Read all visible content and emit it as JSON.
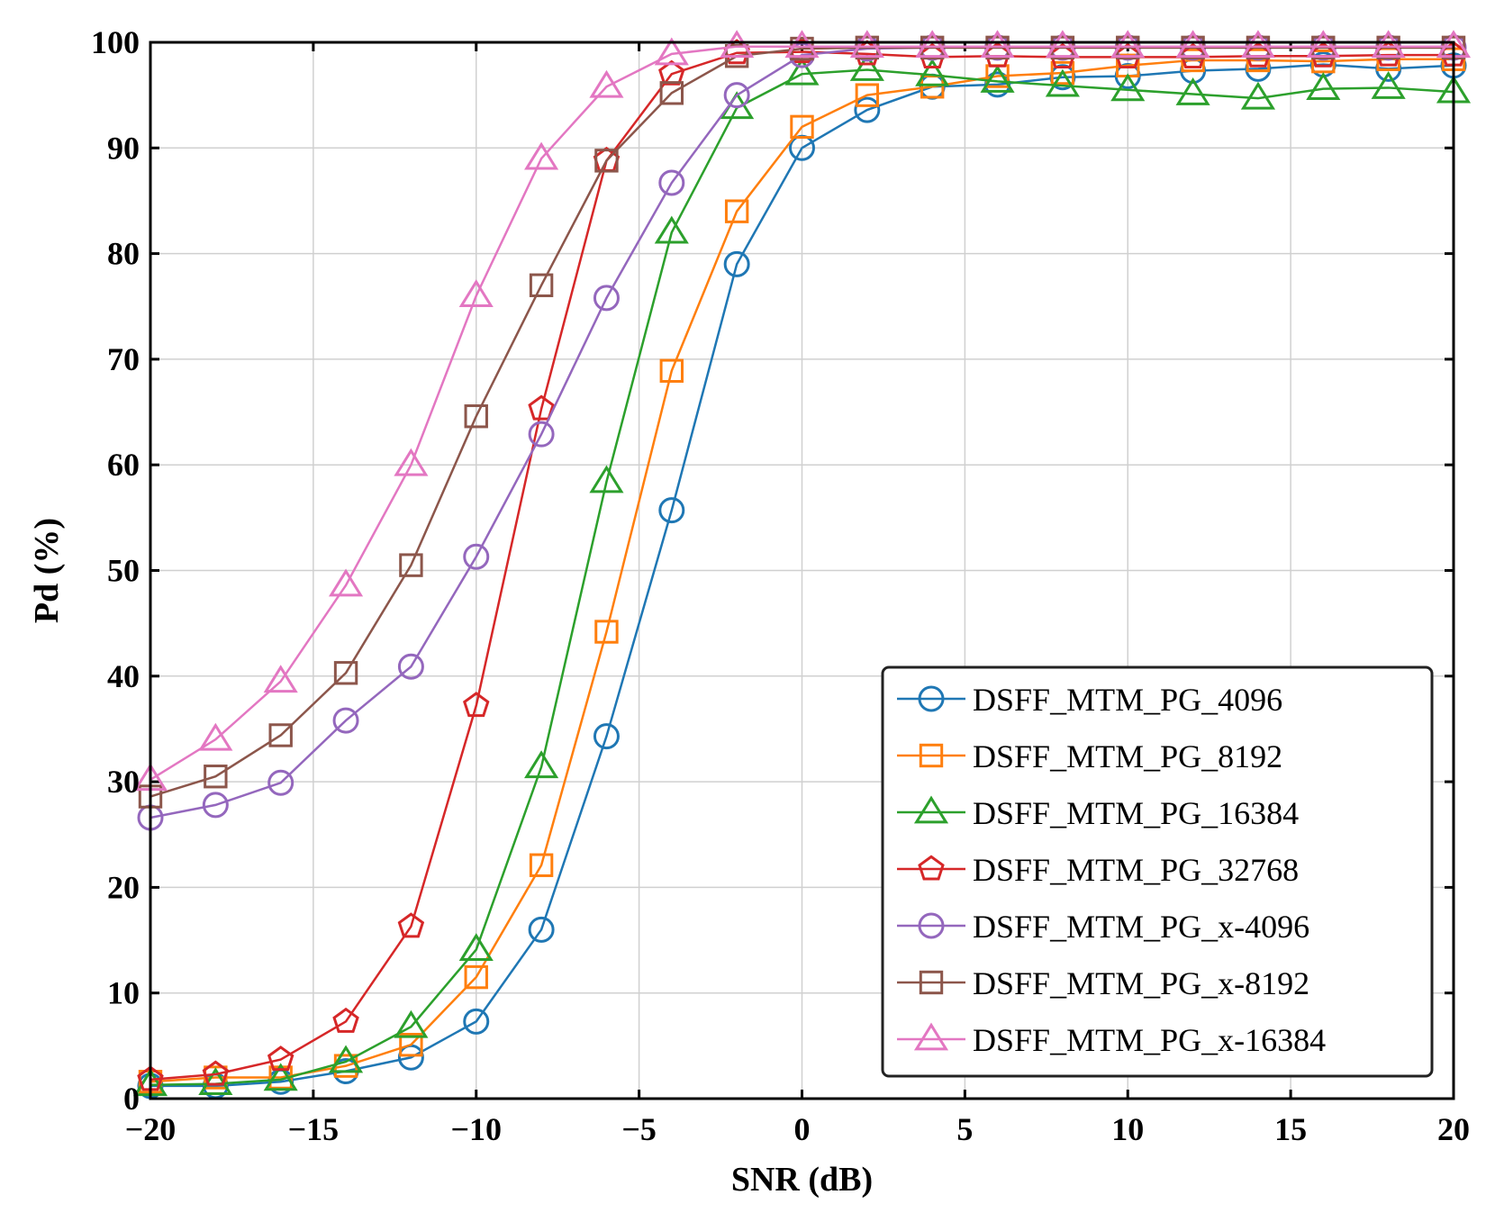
{
  "chart_data": {
    "type": "line",
    "title": "",
    "xlabel": "SNR (dB)",
    "ylabel": "Pd (%)",
    "xlim": [
      -20,
      20
    ],
    "ylim": [
      0,
      100
    ],
    "grid": true,
    "legend_position": "bottom-right",
    "xticks": [
      -20,
      -15,
      -10,
      -5,
      0,
      5,
      10,
      15,
      20
    ],
    "xtick_labels": [
      "−20",
      "−15",
      "−10",
      "−5",
      "0",
      "5",
      "10",
      "15",
      "20"
    ],
    "yticks": [
      0,
      10,
      20,
      30,
      40,
      50,
      60,
      70,
      80,
      90,
      100
    ],
    "ytick_labels": [
      "0",
      "10",
      "20",
      "30",
      "40",
      "50",
      "60",
      "70",
      "80",
      "90",
      "100"
    ],
    "x": [
      -20,
      -18,
      -16,
      -14,
      -12,
      -10,
      -8,
      -6,
      -4,
      -2,
      0,
      2,
      4,
      6,
      8,
      10,
      12,
      14,
      16,
      18,
      20
    ],
    "series": [
      {
        "name": "DSFF_MTM_PG_4096",
        "color": "#1f77b4",
        "marker": "circle",
        "values": [
          1.2,
          1.2,
          1.6,
          2.6,
          3.9,
          7.3,
          16.0,
          34.3,
          55.7,
          79.0,
          90.0,
          93.6,
          95.8,
          96.0,
          96.7,
          96.8,
          97.3,
          97.5,
          97.9,
          97.5,
          97.8
        ]
      },
      {
        "name": "DSFF_MTM_PG_8192",
        "color": "#ff7f0e",
        "marker": "square",
        "values": [
          1.6,
          2.0,
          2.0,
          3.1,
          5.1,
          11.5,
          22.1,
          44.2,
          68.9,
          84.0,
          92.0,
          95.0,
          95.8,
          96.8,
          97.1,
          97.8,
          98.3,
          98.3,
          98.2,
          98.4,
          98.4
        ]
      },
      {
        "name": "DSFF_MTM_PG_16384",
        "color": "#2ca02c",
        "marker": "triangle",
        "values": [
          1.3,
          1.4,
          1.8,
          3.5,
          6.8,
          14.1,
          31.4,
          58.4,
          82.0,
          93.8,
          97.0,
          97.4,
          96.9,
          96.3,
          95.9,
          95.5,
          95.1,
          94.7,
          95.6,
          95.7,
          95.3
        ]
      },
      {
        "name": "DSFF_MTM_PG_32768",
        "color": "#d62728",
        "marker": "pentagon",
        "values": [
          1.8,
          2.3,
          3.7,
          7.3,
          16.3,
          37.2,
          65.3,
          88.8,
          97.0,
          99.0,
          99.1,
          98.9,
          98.6,
          98.7,
          98.6,
          98.6,
          98.6,
          98.7,
          98.7,
          98.8,
          98.8
        ]
      },
      {
        "name": "DSFF_MTM_PG_x-4096",
        "color": "#9467bd",
        "marker": "circle",
        "values": [
          26.6,
          27.8,
          29.9,
          35.8,
          40.9,
          51.3,
          62.9,
          75.8,
          86.7,
          95.0,
          98.8,
          99.4,
          99.5,
          99.5,
          99.5,
          99.5,
          99.5,
          99.5,
          99.5,
          99.5,
          99.5
        ]
      },
      {
        "name": "DSFF_MTM_PG_x-8192",
        "color": "#8c564b",
        "marker": "square",
        "values": [
          28.6,
          30.5,
          34.4,
          40.3,
          50.5,
          64.6,
          77.0,
          88.8,
          95.2,
          98.7,
          99.4,
          99.5,
          99.5,
          99.5,
          99.5,
          99.5,
          99.5,
          99.5,
          99.5,
          99.5,
          99.5
        ]
      },
      {
        "name": "DSFF_MTM_PG_x-16384",
        "color": "#e377c2",
        "marker": "triangle",
        "values": [
          30.2,
          34.0,
          39.5,
          48.6,
          60.0,
          76.0,
          89.0,
          95.8,
          98.9,
          99.6,
          99.6,
          99.6,
          99.6,
          99.6,
          99.6,
          99.6,
          99.6,
          99.6,
          99.6,
          99.6,
          99.6
        ]
      }
    ]
  }
}
